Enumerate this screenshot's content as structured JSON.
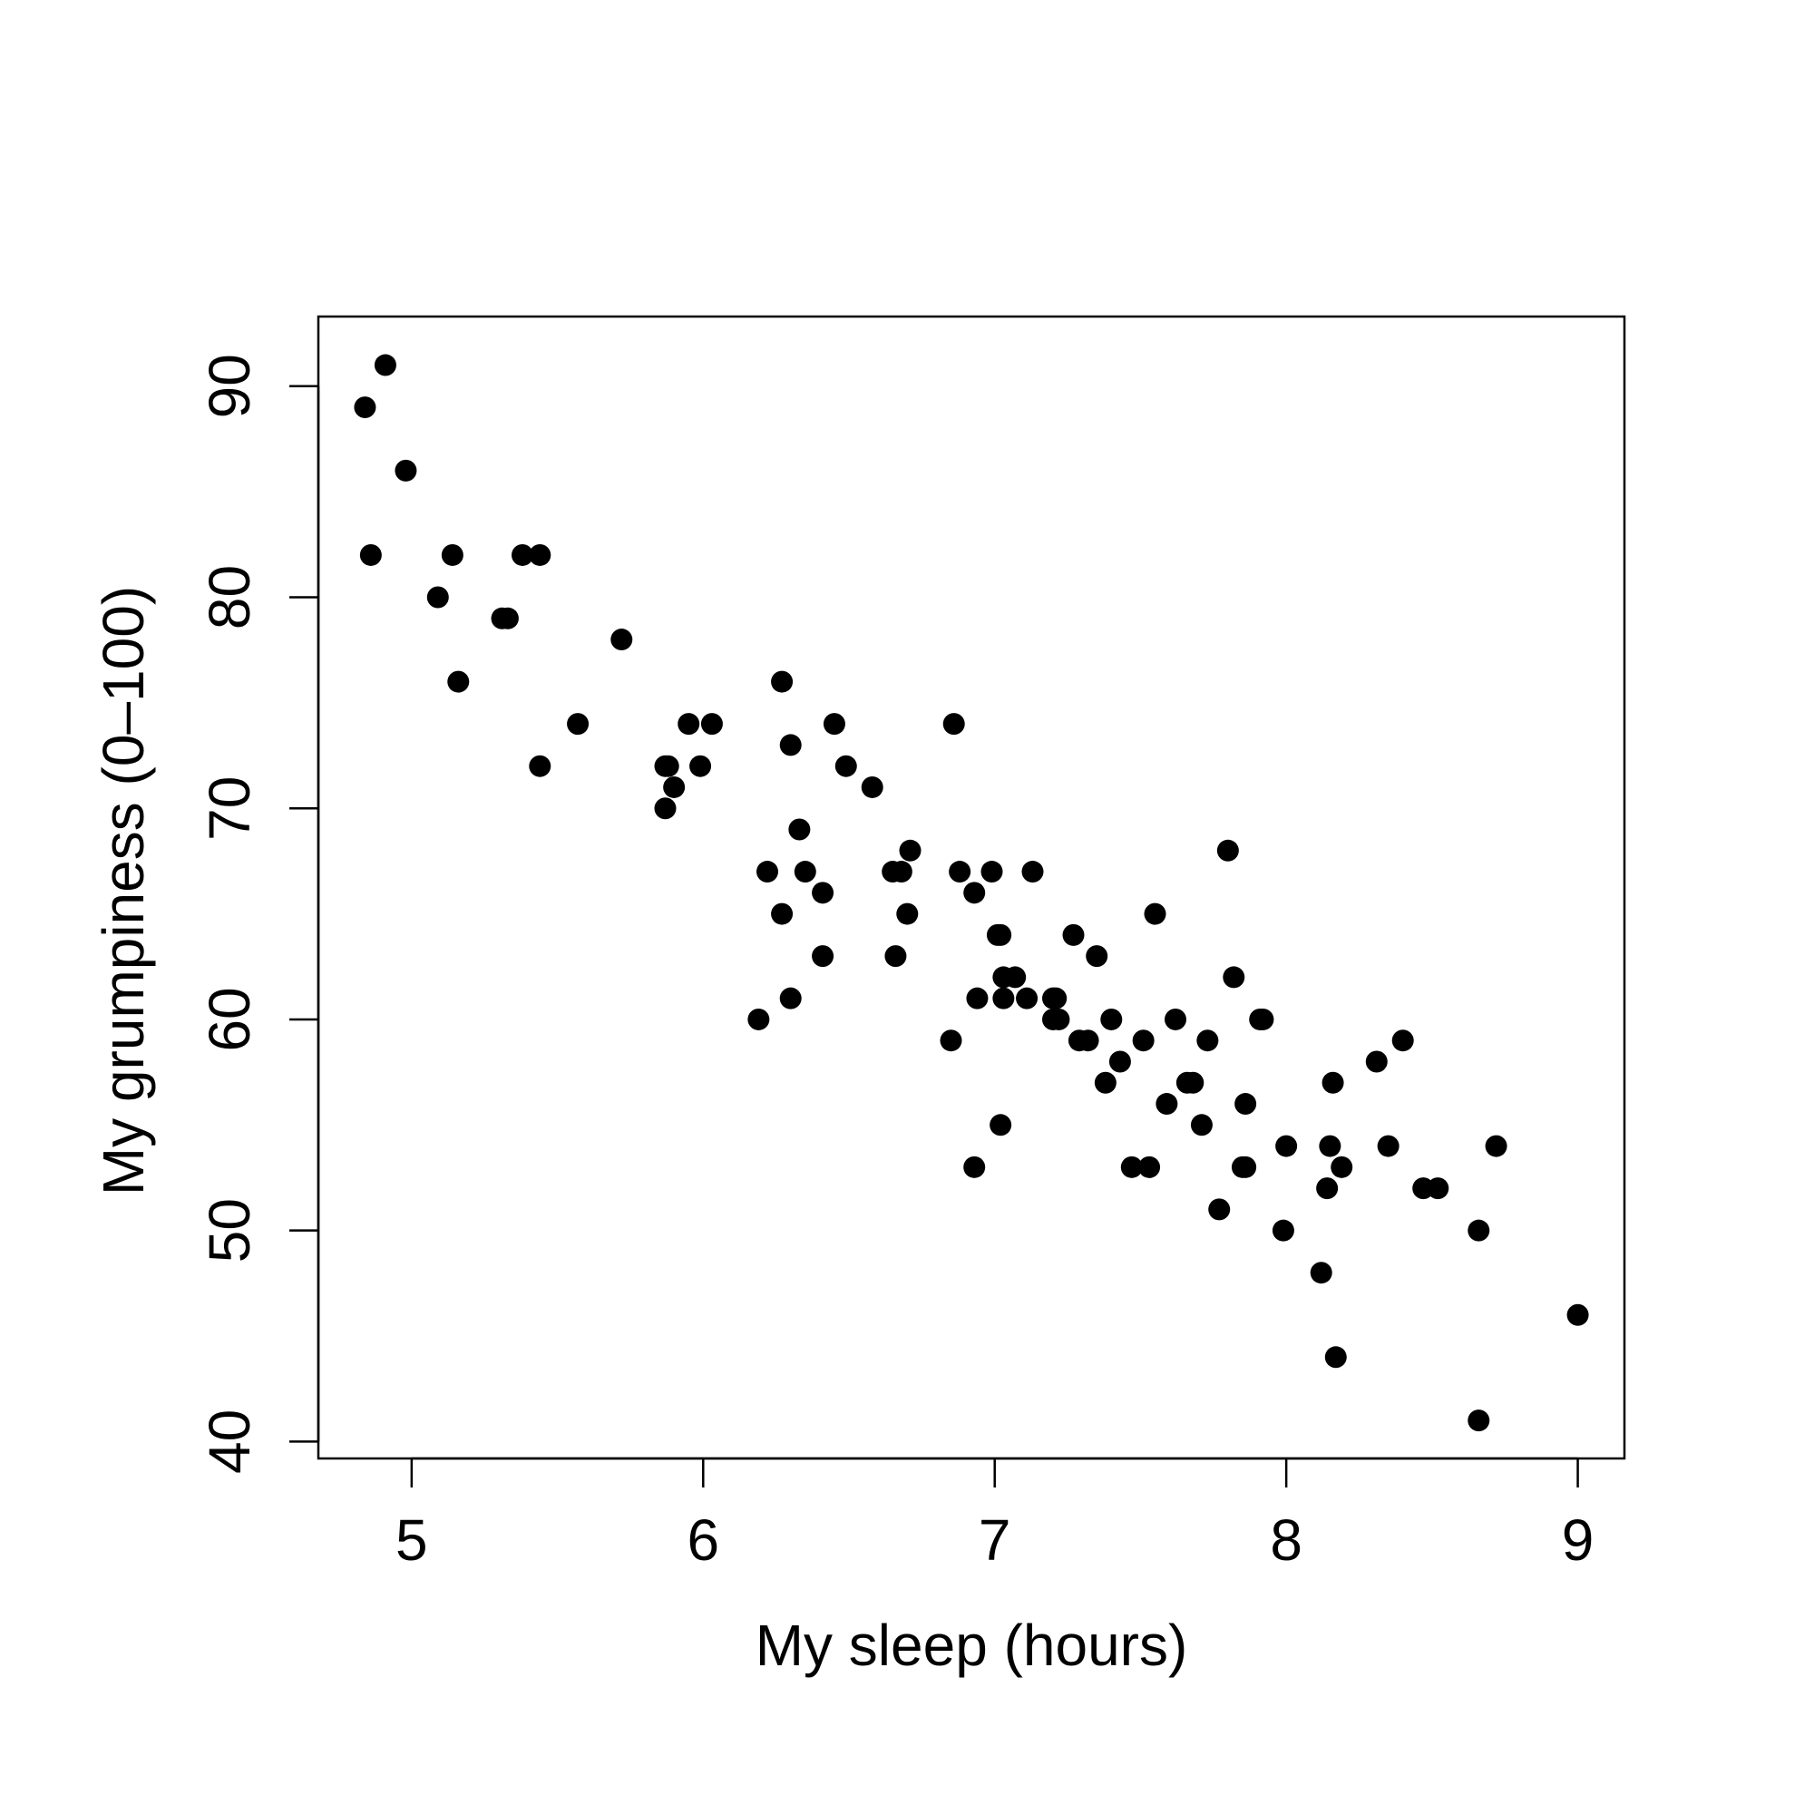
{
  "chart_data": {
    "type": "scatter",
    "title": "",
    "xlabel": "My sleep (hours)",
    "ylabel": "My grumpiness (0–100)",
    "xlim": [
      4.68,
      9.16
    ],
    "ylim": [
      39.2,
      93.3
    ],
    "xticks": [
      5,
      6,
      7,
      8,
      9
    ],
    "xtick_labels": [
      "5",
      "6",
      "7",
      "8",
      "9"
    ],
    "yticks": [
      40,
      50,
      60,
      70,
      80,
      90
    ],
    "ytick_labels": [
      "40",
      "50",
      "60",
      "70",
      "80",
      "90"
    ],
    "grid": false,
    "legend": "none",
    "marker_color": "#000000",
    "points": [
      {
        "x": 4.84,
        "y": 89
      },
      {
        "x": 4.91,
        "y": 91
      },
      {
        "x": 4.86,
        "y": 82
      },
      {
        "x": 4.98,
        "y": 86
      },
      {
        "x": 5.09,
        "y": 80
      },
      {
        "x": 5.14,
        "y": 82
      },
      {
        "x": 5.16,
        "y": 76
      },
      {
        "x": 5.31,
        "y": 79
      },
      {
        "x": 5.33,
        "y": 79
      },
      {
        "x": 5.38,
        "y": 82
      },
      {
        "x": 5.44,
        "y": 82
      },
      {
        "x": 5.44,
        "y": 72
      },
      {
        "x": 5.57,
        "y": 74
      },
      {
        "x": 5.72,
        "y": 78
      },
      {
        "x": 5.87,
        "y": 72
      },
      {
        "x": 5.88,
        "y": 72
      },
      {
        "x": 5.87,
        "y": 70
      },
      {
        "x": 5.9,
        "y": 71
      },
      {
        "x": 5.95,
        "y": 74
      },
      {
        "x": 5.99,
        "y": 72
      },
      {
        "x": 6.03,
        "y": 74
      },
      {
        "x": 6.19,
        "y": 60
      },
      {
        "x": 6.22,
        "y": 67
      },
      {
        "x": 6.27,
        "y": 76
      },
      {
        "x": 6.27,
        "y": 65
      },
      {
        "x": 6.3,
        "y": 73
      },
      {
        "x": 6.3,
        "y": 61
      },
      {
        "x": 6.33,
        "y": 69
      },
      {
        "x": 6.35,
        "y": 67
      },
      {
        "x": 6.41,
        "y": 66
      },
      {
        "x": 6.41,
        "y": 63
      },
      {
        "x": 6.45,
        "y": 74
      },
      {
        "x": 6.49,
        "y": 72
      },
      {
        "x": 6.58,
        "y": 71
      },
      {
        "x": 6.65,
        "y": 67
      },
      {
        "x": 6.68,
        "y": 67
      },
      {
        "x": 6.66,
        "y": 63
      },
      {
        "x": 6.71,
        "y": 68
      },
      {
        "x": 6.7,
        "y": 65
      },
      {
        "x": 6.85,
        "y": 59
      },
      {
        "x": 6.86,
        "y": 74
      },
      {
        "x": 6.88,
        "y": 67
      },
      {
        "x": 6.93,
        "y": 66
      },
      {
        "x": 6.94,
        "y": 61
      },
      {
        "x": 6.93,
        "y": 53
      },
      {
        "x": 6.99,
        "y": 67
      },
      {
        "x": 7.01,
        "y": 64
      },
      {
        "x": 7.02,
        "y": 64
      },
      {
        "x": 7.03,
        "y": 62
      },
      {
        "x": 7.03,
        "y": 61
      },
      {
        "x": 7.02,
        "y": 55
      },
      {
        "x": 7.07,
        "y": 62
      },
      {
        "x": 7.11,
        "y": 61
      },
      {
        "x": 7.13,
        "y": 67
      },
      {
        "x": 7.2,
        "y": 61
      },
      {
        "x": 7.21,
        "y": 61
      },
      {
        "x": 7.2,
        "y": 60
      },
      {
        "x": 7.22,
        "y": 60
      },
      {
        "x": 7.27,
        "y": 64
      },
      {
        "x": 7.29,
        "y": 59
      },
      {
        "x": 7.32,
        "y": 59
      },
      {
        "x": 7.35,
        "y": 63
      },
      {
        "x": 7.38,
        "y": 57
      },
      {
        "x": 7.4,
        "y": 60
      },
      {
        "x": 7.43,
        "y": 58
      },
      {
        "x": 7.47,
        "y": 53
      },
      {
        "x": 7.51,
        "y": 59
      },
      {
        "x": 7.53,
        "y": 53
      },
      {
        "x": 7.55,
        "y": 65
      },
      {
        "x": 7.59,
        "y": 56
      },
      {
        "x": 7.62,
        "y": 60
      },
      {
        "x": 7.66,
        "y": 57
      },
      {
        "x": 7.68,
        "y": 57
      },
      {
        "x": 7.71,
        "y": 55
      },
      {
        "x": 7.73,
        "y": 59
      },
      {
        "x": 7.77,
        "y": 51
      },
      {
        "x": 7.8,
        "y": 68
      },
      {
        "x": 7.82,
        "y": 62
      },
      {
        "x": 7.85,
        "y": 53
      },
      {
        "x": 7.86,
        "y": 53
      },
      {
        "x": 7.86,
        "y": 56
      },
      {
        "x": 7.91,
        "y": 60
      },
      {
        "x": 7.92,
        "y": 60
      },
      {
        "x": 7.99,
        "y": 50
      },
      {
        "x": 8.0,
        "y": 54
      },
      {
        "x": 8.12,
        "y": 48
      },
      {
        "x": 8.14,
        "y": 52
      },
      {
        "x": 8.15,
        "y": 54
      },
      {
        "x": 8.16,
        "y": 57
      },
      {
        "x": 8.17,
        "y": 44
      },
      {
        "x": 8.19,
        "y": 53
      },
      {
        "x": 8.31,
        "y": 58
      },
      {
        "x": 8.35,
        "y": 54
      },
      {
        "x": 8.4,
        "y": 59
      },
      {
        "x": 8.47,
        "y": 52
      },
      {
        "x": 8.52,
        "y": 52
      },
      {
        "x": 8.66,
        "y": 50
      },
      {
        "x": 8.66,
        "y": 41
      },
      {
        "x": 8.72,
        "y": 54
      },
      {
        "x": 9.0,
        "y": 46
      }
    ]
  }
}
